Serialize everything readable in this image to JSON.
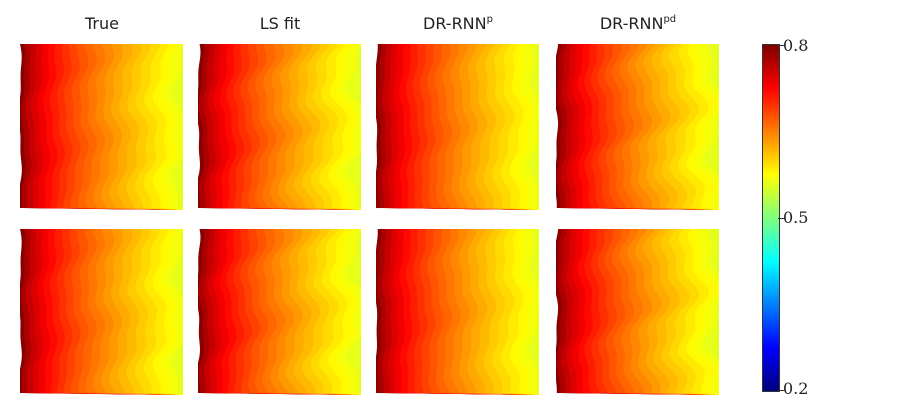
{
  "columns": [
    {
      "title": "True",
      "sup": ""
    },
    {
      "title": "LS fit",
      "sup": ""
    },
    {
      "title": "DR-RNN",
      "sup": "p"
    },
    {
      "title": "DR-RNN",
      "sup": "pd"
    }
  ],
  "colorbar": {
    "colormap": "jet",
    "min": 0.2,
    "max": 0.8,
    "ticks": [
      "0.8",
      "0.5",
      "0.2"
    ]
  },
  "field": {
    "description_value_range": [
      0.56,
      0.79
    ],
    "grid": "2x4"
  }
}
